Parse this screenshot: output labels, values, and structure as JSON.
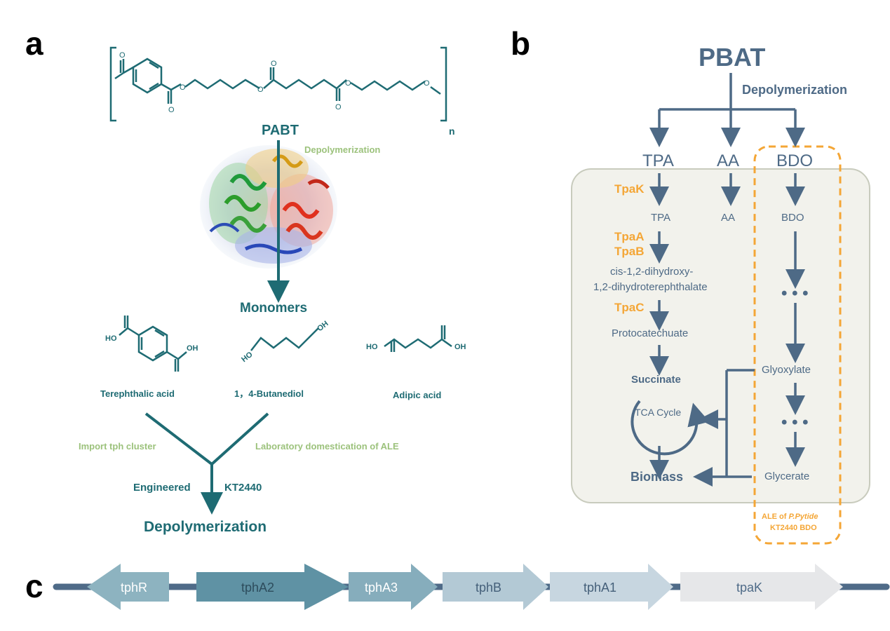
{
  "panels": {
    "a": "a",
    "b": "b",
    "c": "c"
  },
  "panel_a": {
    "polymer_subscript": "n",
    "polymer_name": "PABT",
    "depolymerization_label": "Depolymerization",
    "monomers_label": "Monomers",
    "monomers": [
      {
        "name": "Terephthalic  acid",
        "groups": [
          "HO",
          "OH"
        ]
      },
      {
        "name": "1，4-Butanediol",
        "groups": [
          "HO",
          "OH"
        ]
      },
      {
        "name": "Adipic  acid",
        "groups": [
          "HO",
          "OH"
        ]
      }
    ],
    "left_route": "Import  tph cluster",
    "right_route": "Laboratory domestication of ALE",
    "strain_left": "Engineered",
    "strain_right": "KT2440",
    "final_label": "Depolymerization"
  },
  "panel_b": {
    "top": "PBAT",
    "depolymerization": "Depolymerization",
    "branches": [
      "TPA",
      "AA",
      "BDO"
    ],
    "enzymes": {
      "tpak": "TpaK",
      "tpaa": "TpaA",
      "tpab": "TpaB",
      "tpac": "TpaC"
    },
    "tpa_inside": "TPA",
    "aa_inside": "AA",
    "bdo_inside": "BDO",
    "intermediate_line1": "cis-1,2-dihydroxy-",
    "intermediate_line2": "1,2-dihydroterephthalate",
    "protocatechuate": "Protocatechuate",
    "succinate": "Succinate",
    "tca": "TCA Cycle",
    "biomass": "Biomass",
    "glyoxylate": "Glyoxylate",
    "glycerate": "Glycerate",
    "ellipsis": "• • •",
    "ale_line1_a": "ALE  of  ",
    "ale_line1_b": "P.Pytide",
    "ale_line2": "KT2440  BDO",
    "colors": {
      "slate": "#4e6a86",
      "orange": "#f4a636",
      "box": "#f2f2ec"
    }
  },
  "panel_c": {
    "genes": [
      "tphR",
      "tphA2",
      "tphA3",
      "tphB",
      "tphA1",
      "tpaK"
    ]
  }
}
